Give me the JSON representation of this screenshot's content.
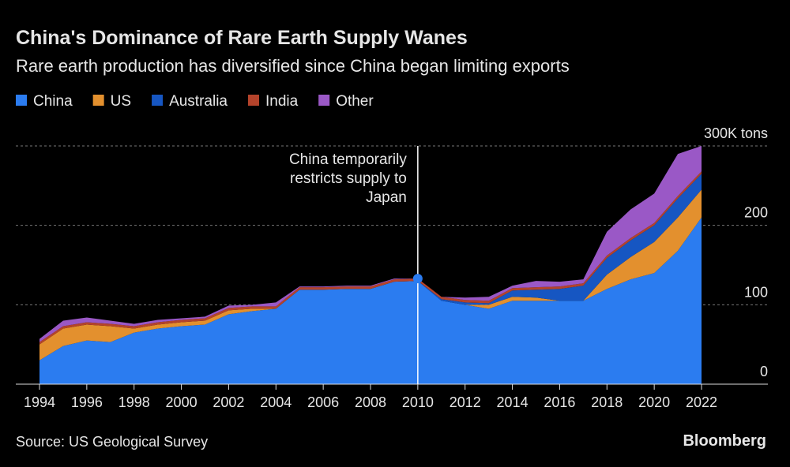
{
  "chart_data": {
    "type": "stacked-area",
    "title": "China's Dominance of Rare Earth Supply Wanes",
    "subtitle": "Rare earth production has diversified since China began limiting exports",
    "x": [
      1994,
      1995,
      1996,
      1997,
      1998,
      1999,
      2000,
      2001,
      2002,
      2003,
      2004,
      2005,
      2006,
      2007,
      2008,
      2009,
      2010,
      2011,
      2012,
      2013,
      2014,
      2015,
      2016,
      2017,
      2018,
      2019,
      2020,
      2021,
      2022
    ],
    "xlim": [
      1994,
      2022
    ],
    "xticks": [
      1994,
      1996,
      1998,
      2000,
      2002,
      2004,
      2006,
      2008,
      2010,
      2012,
      2014,
      2016,
      2018,
      2020,
      2022
    ],
    "ylim": [
      0,
      300
    ],
    "yticks": [
      0,
      100,
      200,
      {
        "value": 300,
        "label": "300K tons"
      }
    ],
    "grid": true,
    "series": [
      {
        "name": "China",
        "color": "#2b7cf0",
        "values": [
          30,
          48,
          55,
          53,
          65,
          70,
          73,
          75,
          88,
          92,
          95,
          119,
          119,
          120,
          120,
          129,
          130,
          105,
          100,
          95,
          105,
          105,
          105,
          105,
          120,
          132,
          140,
          168,
          210
        ]
      },
      {
        "name": "US",
        "color": "#e3902e",
        "values": [
          20,
          22,
          20,
          20,
          5,
          5,
          5,
          5,
          5,
          3,
          0,
          0,
          0,
          0,
          0,
          0,
          0,
          0,
          0,
          5,
          5,
          4,
          0,
          0,
          18,
          28,
          39,
          42,
          35
        ]
      },
      {
        "name": "Australia",
        "color": "#1656c2",
        "values": [
          0,
          0,
          0,
          0,
          0,
          0,
          0,
          0,
          0,
          0,
          0,
          0,
          0,
          0,
          0,
          0,
          0,
          2,
          3,
          2,
          8,
          10,
          15,
          19,
          21,
          21,
          21,
          24,
          20
        ]
      },
      {
        "name": "India",
        "color": "#b4432b",
        "values": [
          3,
          3,
          3,
          3,
          3,
          3,
          3,
          3,
          3,
          3,
          3,
          3,
          3,
          3,
          3,
          3,
          3,
          3,
          3,
          3,
          3,
          3,
          3,
          3,
          3,
          3,
          3,
          3,
          3
        ]
      },
      {
        "name": "Other",
        "color": "#9a58c6",
        "values": [
          4,
          7,
          6,
          4,
          3,
          3,
          2,
          2,
          3,
          2,
          5,
          1,
          1,
          1,
          1,
          1,
          0,
          0,
          3,
          5,
          3,
          8,
          6,
          5,
          30,
          36,
          37,
          53,
          32
        ]
      }
    ],
    "annotation": {
      "x": 2010,
      "lines": [
        "China temporarily",
        "restricts supply to",
        "Japan"
      ]
    },
    "source": "Source: US Geological Survey",
    "logo": "Bloomberg"
  }
}
